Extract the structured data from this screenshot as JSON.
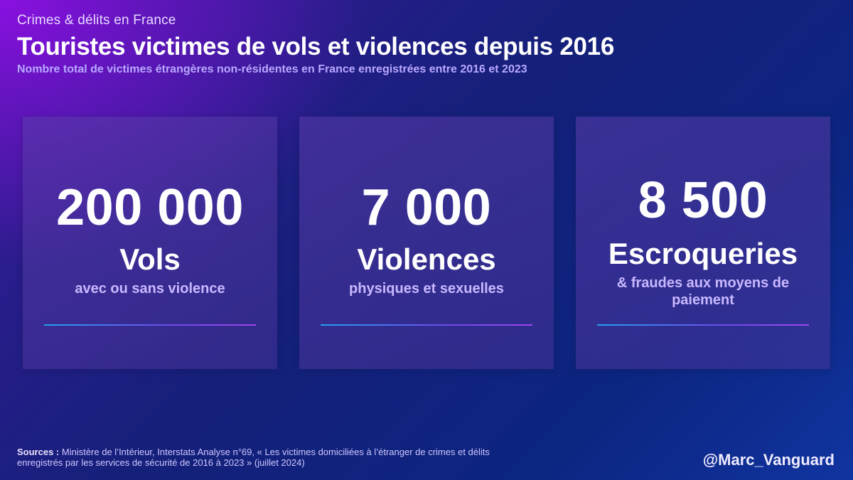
{
  "header": {
    "kicker": "Crimes & délits en France",
    "title": "Touristes victimes de vols et violences depuis 2016",
    "subtitle": "Nombre total de victimes étrangères non-résidentes en France enregistrées entre 2016 et 2023"
  },
  "chart_data": {
    "type": "table",
    "title": "Touristes victimes de vols et violences depuis 2016",
    "subtitle": "Nombre total de victimes étrangères non-résidentes en France enregistrées entre 2016 et 2023",
    "categories": [
      "Vols",
      "Violences",
      "Escroqueries"
    ],
    "values": [
      200000,
      7000,
      8500
    ],
    "cards": [
      {
        "value_text": "200 000",
        "value": 200000,
        "label": "Vols",
        "description": "avec ou sans violence"
      },
      {
        "value_text": "7 000",
        "value": 7000,
        "label": "Violences",
        "description": "physiques et sexuelles"
      },
      {
        "value_text": "8 500",
        "value": 8500,
        "label": "Escroqueries",
        "description": "& fraudes aux moyens de paiement"
      }
    ]
  },
  "footer": {
    "sources_label": "Sources :",
    "sources_text": "Ministère de l’Intérieur, Interstats Analyse n°69, « Les victimes domiciliées à l’étranger de crimes et délits enregistrés par les services de sécurité de 2016 à 2023 » (juillet 2024)",
    "handle": "@Marc_Vanguard"
  },
  "colors": {
    "accent": "#b9a8ff",
    "description": "#c9b8ff",
    "background_top_left": "#8a10e0",
    "background_bottom_right": "#1034a0"
  }
}
